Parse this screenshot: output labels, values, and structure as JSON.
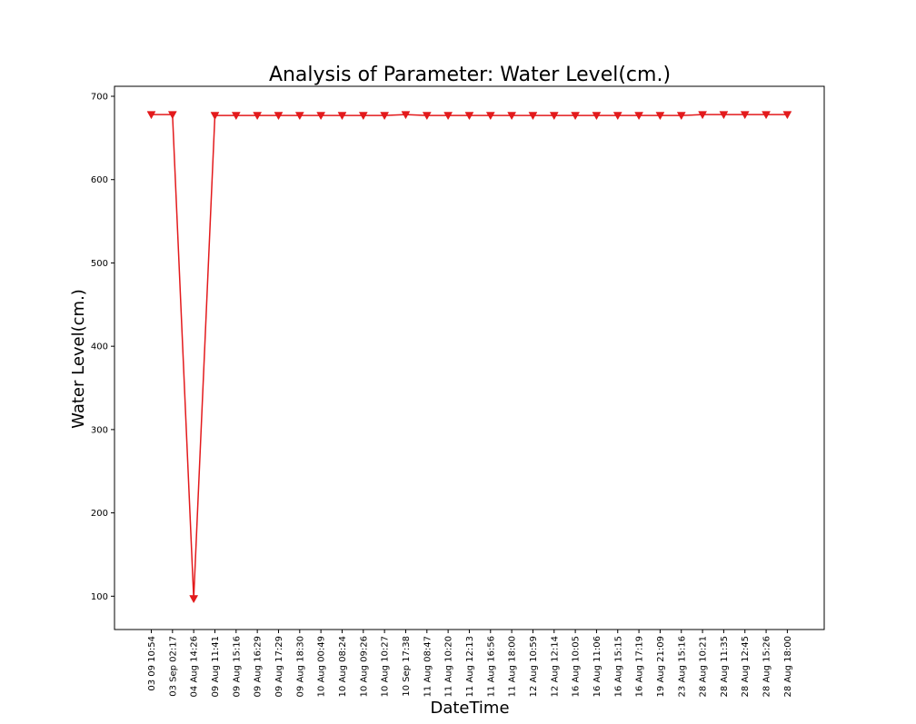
{
  "chart_data": {
    "type": "line",
    "title": "Analysis of Parameter: Water Level(cm.)",
    "xlabel": "DateTime",
    "ylabel": "Water Level(cm.)",
    "ylim": [
      60,
      712
    ],
    "yticks": [
      100,
      200,
      300,
      400,
      500,
      600,
      700
    ],
    "grid": false,
    "color": "#e31a1c",
    "marker": "triangle-down",
    "categories": [
      "03 09 10:54",
      "03 Sep 02:17",
      "04 Aug 14:26",
      "09 Aug 11:41",
      "09 Aug 15:16",
      "09 Aug 16:29",
      "09 Aug 17:29",
      "09 Aug 18:30",
      "10 Aug 00:49",
      "10 Aug 08:24",
      "10 Aug 09:26",
      "10 Aug 10:27",
      "10 Sep 17:38",
      "11 Aug 08:47",
      "11 Aug 10:20",
      "11 Aug 12:13",
      "11 Aug 16:56",
      "11 Aug 18:00",
      "12 Aug 10:59",
      "12 Aug 12:14",
      "16 Aug 10:05",
      "16 Aug 11:06",
      "16 Aug 15:15",
      "16 Aug 17:19",
      "19 Aug 21:09",
      "23 Aug 15:16",
      "28 Aug 10:21",
      "28 Aug 11:35",
      "28 Aug 12:45",
      "28 Aug 15:26",
      "28 Aug 18:00"
    ],
    "series": [
      {
        "values": [
          678,
          678,
          97,
          677,
          677,
          677,
          677,
          677,
          677,
          677,
          677,
          677,
          678,
          677,
          677,
          677,
          677,
          677,
          677,
          677,
          677,
          677,
          677,
          677,
          677,
          677,
          678,
          678,
          678,
          678,
          678
        ]
      }
    ]
  }
}
